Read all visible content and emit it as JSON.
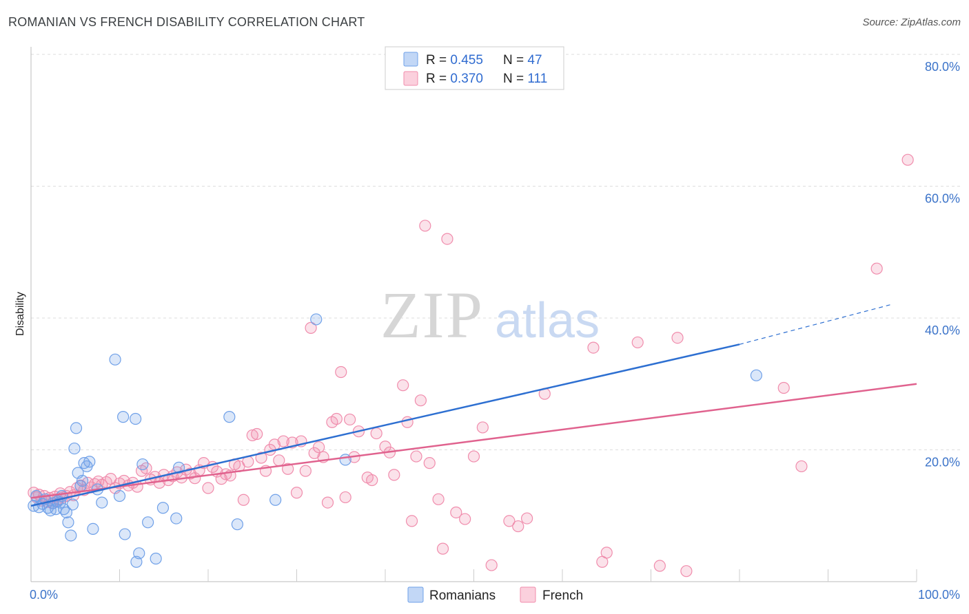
{
  "header": {
    "title": "ROMANIAN VS FRENCH DISABILITY CORRELATION CHART",
    "source": "Source: ZipAtlas.com"
  },
  "watermark": {
    "zip": "ZIP",
    "atlas": "atlas"
  },
  "legend": {
    "rows": [
      {
        "r_label": "R = ",
        "r_value": "0.455",
        "n_label": "N = ",
        "n_value": "47"
      },
      {
        "r_label": "R = ",
        "r_value": "0.370",
        "n_label": "N = ",
        "n_value": "111"
      }
    ]
  },
  "colors": {
    "romanians": "#6fa0e8",
    "romanians_line": "#2d6fd1",
    "french": "#f08cac",
    "french_line": "#e0628e",
    "grid": "#dddddd",
    "tick": "#3b73c9"
  },
  "chart_data": {
    "type": "scatter",
    "title": "ROMANIAN VS FRENCH DISABILITY CORRELATION CHART",
    "xlabel": "",
    "ylabel": "Disability",
    "xlim": [
      0,
      100
    ],
    "ylim": [
      0,
      80
    ],
    "x_tick_labels": [
      "0.0%",
      "100.0%"
    ],
    "y_ticks": [
      20,
      40,
      60,
      80
    ],
    "y_tick_labels": [
      "20.0%",
      "40.0%",
      "60.0%",
      "80.0%"
    ],
    "grid": true,
    "legend_position": "top-center",
    "series": [
      {
        "name": "Romanians",
        "r": 0.455,
        "n": 47,
        "trend": {
          "x0": 0,
          "y0": 11.5,
          "x1": 80,
          "y1": 36.0,
          "dashed_to_x": 97,
          "dashed_to_y": 42.0
        },
        "points": [
          [
            0.3,
            11.5
          ],
          [
            0.6,
            13.0
          ],
          [
            0.9,
            11.3
          ],
          [
            1.3,
            11.8
          ],
          [
            1.6,
            12.5
          ],
          [
            1.9,
            11.2
          ],
          [
            2.2,
            10.8
          ],
          [
            2.5,
            11.9
          ],
          [
            2.8,
            11.0
          ],
          [
            3.0,
            12.2
          ],
          [
            3.3,
            12.0
          ],
          [
            3.5,
            13.0
          ],
          [
            3.7,
            11.0
          ],
          [
            4.0,
            10.5
          ],
          [
            4.2,
            9.0
          ],
          [
            4.5,
            7.0
          ],
          [
            4.7,
            11.7
          ],
          [
            4.9,
            20.2
          ],
          [
            5.1,
            23.3
          ],
          [
            5.3,
            16.5
          ],
          [
            5.6,
            14.5
          ],
          [
            5.8,
            15.3
          ],
          [
            6.0,
            18.0
          ],
          [
            6.3,
            17.5
          ],
          [
            6.6,
            18.2
          ],
          [
            7.0,
            8.0
          ],
          [
            7.5,
            14.0
          ],
          [
            8.0,
            12.0
          ],
          [
            9.5,
            33.7
          ],
          [
            10.0,
            13.0
          ],
          [
            10.4,
            25.0
          ],
          [
            10.6,
            7.2
          ],
          [
            11.8,
            24.7
          ],
          [
            11.9,
            3.0
          ],
          [
            12.2,
            4.3
          ],
          [
            12.6,
            17.8
          ],
          [
            13.2,
            9.0
          ],
          [
            14.1,
            3.5
          ],
          [
            14.9,
            11.2
          ],
          [
            16.4,
            9.6
          ],
          [
            16.7,
            17.3
          ],
          [
            22.4,
            25.0
          ],
          [
            23.3,
            8.7
          ],
          [
            27.6,
            12.4
          ],
          [
            32.2,
            39.8
          ],
          [
            35.5,
            18.5
          ],
          [
            81.9,
            31.3
          ]
        ]
      },
      {
        "name": "French",
        "r": 0.37,
        "n": 111,
        "trend": {
          "x0": 0,
          "y0": 12.7,
          "x1": 100,
          "y1": 30.0
        },
        "points": [
          [
            0.3,
            13.5
          ],
          [
            0.6,
            12.8
          ],
          [
            0.9,
            13.2
          ],
          [
            1.2,
            12.3
          ],
          [
            1.5,
            13.0
          ],
          [
            1.8,
            12.1
          ],
          [
            2.1,
            12.7
          ],
          [
            2.4,
            11.9
          ],
          [
            2.7,
            12.9
          ],
          [
            3.0,
            12.5
          ],
          [
            3.3,
            13.4
          ],
          [
            3.6,
            12.8
          ],
          [
            4.0,
            13.0
          ],
          [
            4.4,
            13.6
          ],
          [
            4.8,
            13.1
          ],
          [
            5.2,
            14.2
          ],
          [
            5.6,
            14.6
          ],
          [
            6.0,
            13.9
          ],
          [
            6.4,
            15.0
          ],
          [
            6.8,
            14.3
          ],
          [
            7.2,
            14.8
          ],
          [
            7.6,
            15.2
          ],
          [
            8.0,
            14.7
          ],
          [
            8.5,
            15.1
          ],
          [
            9.0,
            15.6
          ],
          [
            9.5,
            14.2
          ],
          [
            10.0,
            14.9
          ],
          [
            10.5,
            15.3
          ],
          [
            11.0,
            14.6
          ],
          [
            11.5,
            15.0
          ],
          [
            12.0,
            14.4
          ],
          [
            12.5,
            16.8
          ],
          [
            13.0,
            17.2
          ],
          [
            13.5,
            15.5
          ],
          [
            14.0,
            15.9
          ],
          [
            14.5,
            15.0
          ],
          [
            15.0,
            16.2
          ],
          [
            15.5,
            15.4
          ],
          [
            16.0,
            16.0
          ],
          [
            16.5,
            16.6
          ],
          [
            17.0,
            15.8
          ],
          [
            17.5,
            17.0
          ],
          [
            18.0,
            16.4
          ],
          [
            18.5,
            15.7
          ],
          [
            19.0,
            16.9
          ],
          [
            19.5,
            18.0
          ],
          [
            20.0,
            14.2
          ],
          [
            20.5,
            17.4
          ],
          [
            21.0,
            16.7
          ],
          [
            21.5,
            15.6
          ],
          [
            22.0,
            16.3
          ],
          [
            22.5,
            16.1
          ],
          [
            23.0,
            17.8
          ],
          [
            23.5,
            17.5
          ],
          [
            24.0,
            12.4
          ],
          [
            24.5,
            18.2
          ],
          [
            25.0,
            22.2
          ],
          [
            25.5,
            22.4
          ],
          [
            26.0,
            18.8
          ],
          [
            26.5,
            16.8
          ],
          [
            27.0,
            20.0
          ],
          [
            27.5,
            20.8
          ],
          [
            28.0,
            18.4
          ],
          [
            28.5,
            21.3
          ],
          [
            29.0,
            17.1
          ],
          [
            29.5,
            21.1
          ],
          [
            30.0,
            13.5
          ],
          [
            30.5,
            21.3
          ],
          [
            31.0,
            16.8
          ],
          [
            31.6,
            38.5
          ],
          [
            32.0,
            19.5
          ],
          [
            32.5,
            20.4
          ],
          [
            33.0,
            18.9
          ],
          [
            33.5,
            12.0
          ],
          [
            34.0,
            24.2
          ],
          [
            34.5,
            24.7
          ],
          [
            35.0,
            31.8
          ],
          [
            35.5,
            12.8
          ],
          [
            36.0,
            24.6
          ],
          [
            36.5,
            18.9
          ],
          [
            37.0,
            22.8
          ],
          [
            38.0,
            15.8
          ],
          [
            38.5,
            15.4
          ],
          [
            39.0,
            22.5
          ],
          [
            40.0,
            20.5
          ],
          [
            40.5,
            19.6
          ],
          [
            41.0,
            16.2
          ],
          [
            42.0,
            29.8
          ],
          [
            42.5,
            24.2
          ],
          [
            43.0,
            9.2
          ],
          [
            43.5,
            19.0
          ],
          [
            44.0,
            27.5
          ],
          [
            44.5,
            54.0
          ],
          [
            45.0,
            18.0
          ],
          [
            46.0,
            12.5
          ],
          [
            46.5,
            5.0
          ],
          [
            47.0,
            52.0
          ],
          [
            48.0,
            10.5
          ],
          [
            49.0,
            9.5
          ],
          [
            50.0,
            19.0
          ],
          [
            51.0,
            23.4
          ],
          [
            52.0,
            2.5
          ],
          [
            54.0,
            9.2
          ],
          [
            55.0,
            8.4
          ],
          [
            56.0,
            9.6
          ],
          [
            58.0,
            28.5
          ],
          [
            63.5,
            35.5
          ],
          [
            64.5,
            3.0
          ],
          [
            65.0,
            4.4
          ],
          [
            68.5,
            36.3
          ],
          [
            71.0,
            2.4
          ],
          [
            73.0,
            37.0
          ],
          [
            74.0,
            1.6
          ],
          [
            85.0,
            29.4
          ],
          [
            87.0,
            17.5
          ],
          [
            95.5,
            47.5
          ],
          [
            99.0,
            64.0
          ]
        ]
      }
    ]
  },
  "bottom_legend": {
    "items": [
      {
        "label": "Romanians"
      },
      {
        "label": "French"
      }
    ]
  }
}
